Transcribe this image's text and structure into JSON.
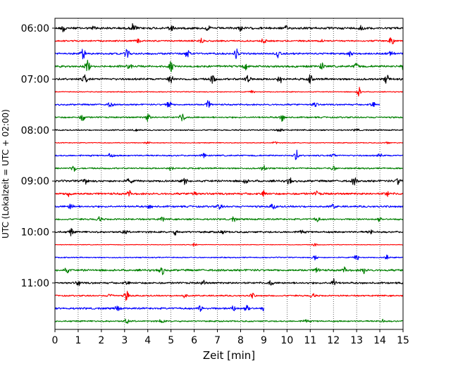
{
  "chart_data": {
    "type": "line",
    "title": "",
    "xlabel": "Zeit  [min]",
    "ylabel": "UTC (Lokalzeit = UTC + 02:00)",
    "xlim": [
      0,
      15
    ],
    "x_ticks": [
      "0",
      "1",
      "2",
      "3",
      "4",
      "5",
      "6",
      "7",
      "8",
      "9",
      "10",
      "11",
      "12",
      "13",
      "14",
      "15"
    ],
    "y_ticks": [
      "06:00",
      "07:00",
      "08:00",
      "09:00",
      "10:00",
      "11:00"
    ],
    "grid": "vertical dotted lines at each minute",
    "legend": "none",
    "trace_colors": [
      "#000000",
      "#ff0000",
      "#0000ff",
      "#008000"
    ],
    "traces_start": "06:00",
    "trace_interval_min": 15,
    "trace_count": 24,
    "bursts": [
      [
        [
          0.4,
          1.0
        ],
        [
          3.4,
          1.0
        ],
        [
          5.0,
          0.7
        ],
        [
          13.2,
          0.6
        ],
        [
          8.0,
          0.5
        ],
        [
          1.7,
          0.4
        ],
        [
          6.6,
          0.4
        ],
        [
          10.0,
          0.4
        ]
      ],
      [
        [
          14.5,
          1.0
        ],
        [
          6.3,
          0.6
        ],
        [
          9.0,
          0.5
        ],
        [
          3.6,
          0.4
        ],
        [
          11.5,
          0.4
        ]
      ],
      [
        [
          1.2,
          1.0
        ],
        [
          3.1,
          0.9
        ],
        [
          5.7,
          0.8
        ],
        [
          7.8,
          1.0
        ],
        [
          9.6,
          0.6
        ],
        [
          12.7,
          0.5
        ],
        [
          14.5,
          0.5
        ]
      ],
      [
        [
          1.4,
          1.0
        ],
        [
          3.2,
          0.6
        ],
        [
          5.0,
          0.9
        ],
        [
          8.2,
          0.7
        ],
        [
          11.5,
          0.6
        ],
        [
          13.0,
          0.7
        ],
        [
          15.0,
          0.8
        ]
      ],
      [
        [
          1.3,
          0.9
        ],
        [
          5.0,
          0.9
        ],
        [
          6.8,
          0.9
        ],
        [
          8.3,
          0.9
        ],
        [
          9.7,
          0.8
        ],
        [
          11.0,
          0.7
        ],
        [
          14.3,
          0.8
        ]
      ],
      [
        [
          13.1,
          0.9
        ],
        [
          8.5,
          0.3
        ]
      ],
      [
        [
          2.4,
          0.6
        ],
        [
          4.9,
          1.0
        ],
        [
          6.6,
          0.8
        ],
        [
          11.2,
          0.6
        ],
        [
          13.7,
          0.6
        ]
      ],
      [
        [
          1.2,
          0.8
        ],
        [
          4.0,
          0.8
        ],
        [
          5.5,
          0.9
        ],
        [
          9.8,
          0.7
        ]
      ],
      [
        [
          3.5,
          0.3
        ],
        [
          9.7,
          0.4
        ],
        [
          13.0,
          0.3
        ]
      ],
      [
        [
          4.0,
          0.3
        ],
        [
          9.5,
          0.3
        ],
        [
          14.3,
          0.3
        ]
      ],
      [
        [
          2.4,
          0.5
        ],
        [
          6.4,
          0.4
        ],
        [
          10.4,
          1.0
        ],
        [
          12.0,
          0.4
        ],
        [
          14.0,
          0.3
        ]
      ],
      [
        [
          0.8,
          0.8
        ],
        [
          5.0,
          0.5
        ],
        [
          9.0,
          0.6
        ],
        [
          12.0,
          0.5
        ]
      ],
      [
        [
          1.3,
          0.7
        ],
        [
          3.2,
          0.6
        ],
        [
          5.6,
          0.6
        ],
        [
          8.2,
          0.5
        ],
        [
          10.1,
          0.6
        ],
        [
          12.9,
          0.7
        ],
        [
          14.8,
          0.7
        ]
      ],
      [
        [
          0.6,
          0.6
        ],
        [
          3.2,
          0.5
        ],
        [
          6.0,
          0.6
        ],
        [
          9.0,
          0.6
        ],
        [
          11.3,
          0.5
        ],
        [
          14.3,
          0.6
        ]
      ],
      [
        [
          0.7,
          0.7
        ],
        [
          4.1,
          0.4
        ],
        [
          7.1,
          0.5
        ],
        [
          9.4,
          0.6
        ],
        [
          12.0,
          0.4
        ]
      ],
      [
        [
          1.9,
          0.5
        ],
        [
          4.6,
          0.4
        ],
        [
          7.7,
          0.4
        ],
        [
          11.3,
          0.5
        ],
        [
          14.0,
          0.4
        ]
      ],
      [
        [
          0.7,
          0.7
        ],
        [
          3.0,
          0.4
        ],
        [
          5.2,
          0.5
        ],
        [
          7.2,
          0.4
        ],
        [
          10.6,
          0.4
        ],
        [
          13.6,
          0.4
        ]
      ],
      [
        [
          6.0,
          0.3
        ],
        [
          11.2,
          0.3
        ]
      ],
      [
        [
          11.2,
          0.6
        ],
        [
          13.0,
          0.6
        ],
        [
          14.3,
          0.5
        ]
      ],
      [
        [
          0.5,
          0.6
        ],
        [
          4.6,
          0.9
        ],
        [
          11.3,
          0.5
        ],
        [
          12.5,
          0.5
        ],
        [
          13.3,
          0.6
        ]
      ],
      [
        [
          1.0,
          0.5
        ],
        [
          3.1,
          0.4
        ],
        [
          6.4,
          0.4
        ],
        [
          9.3,
          0.5
        ],
        [
          12.0,
          0.8
        ]
      ],
      [
        [
          2.4,
          0.5
        ],
        [
          3.1,
          1.0
        ],
        [
          5.6,
          0.4
        ],
        [
          8.5,
          0.5
        ],
        [
          11.1,
          0.5
        ]
      ],
      [
        [
          2.7,
          0.6
        ],
        [
          6.3,
          0.7
        ],
        [
          7.7,
          0.6
        ],
        [
          8.3,
          0.9
        ],
        [
          9.0,
          0.4
        ]
      ],
      [
        [
          3.1,
          0.5
        ],
        [
          4.6,
          0.4
        ],
        [
          10.8,
          0.4
        ],
        [
          14.1,
          0.3
        ]
      ]
    ],
    "base_noise": [
      0.22,
      0.15,
      0.18,
      0.2,
      0.2,
      0.08,
      0.15,
      0.15,
      0.12,
      0.08,
      0.14,
      0.14,
      0.2,
      0.2,
      0.18,
      0.16,
      0.18,
      0.06,
      0.1,
      0.2,
      0.18,
      0.14,
      0.18,
      0.14
    ],
    "end_x": [
      15,
      15,
      15,
      15,
      15,
      15,
      14.0,
      15,
      15,
      15,
      15,
      15,
      15,
      15,
      15,
      15,
      15,
      15,
      15,
      15,
      15,
      15,
      9.0,
      15
    ]
  }
}
